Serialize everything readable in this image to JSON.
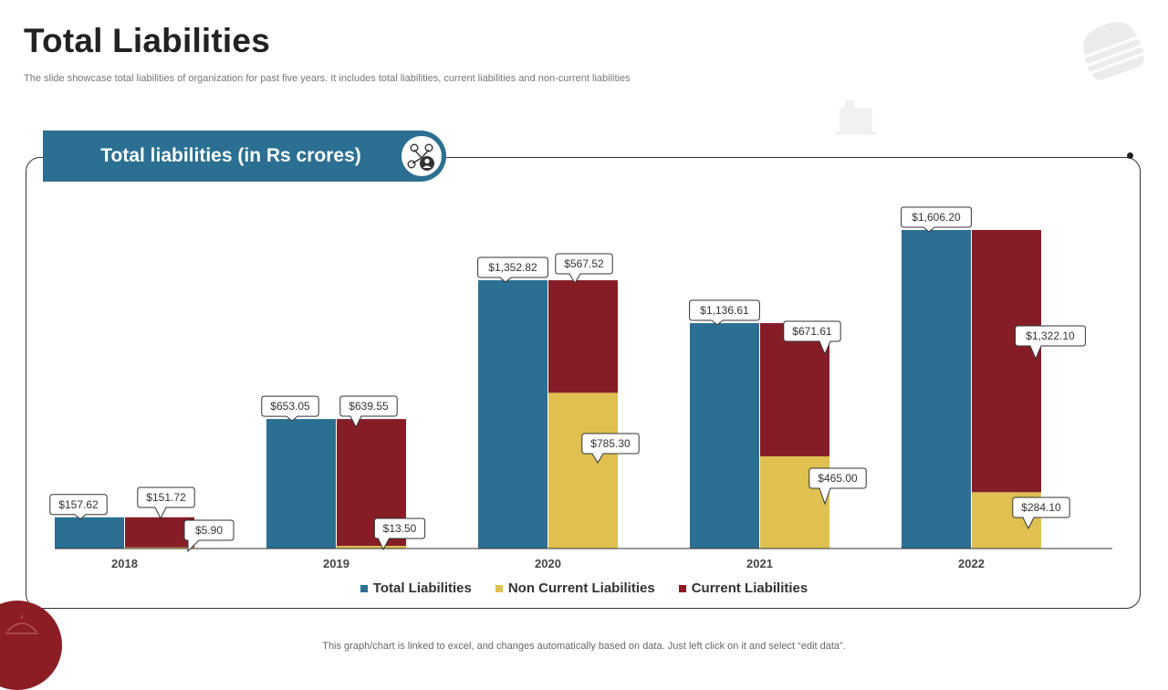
{
  "page": {
    "title": "Total Liabilities",
    "subtitle": "The slide showcase total liabilities of organization for past five years. It includes total liabilities, current liabilities and non-current liabilities",
    "header_label": "Total liabilities  (in Rs crores)",
    "footnote": "This graph/chart is linked to excel,  and changes automatically based on data. Just left click on it and select “edit data”."
  },
  "colors": {
    "total": "#2b6f92",
    "non_current": "#dfc050",
    "current": "#861d26",
    "header": "#2b6f92"
  },
  "chart_data": {
    "type": "bar",
    "title": "Total liabilities  (in Rs crores)",
    "categories": [
      "2018",
      "2019",
      "2020",
      "2021",
      "2022"
    ],
    "stacked_second_column": true,
    "series": [
      {
        "name": "Total Liabilities",
        "key": "total",
        "values": [
          157.62,
          653.05,
          1352.82,
          1136.61,
          1606.2
        ]
      },
      {
        "name": "Non Current Liabilities",
        "key": "non_current",
        "values": [
          5.9,
          13.5,
          785.3,
          465.0,
          284.1
        ]
      },
      {
        "name": "Current Liabilities",
        "key": "current",
        "values": [
          151.72,
          639.55,
          567.52,
          671.61,
          1322.1
        ]
      }
    ],
    "labels": {
      "total": [
        "$157.62",
        "$653.05",
        "$1,352.82",
        "$1,136.61",
        "$1,606.20"
      ],
      "non_current": [
        "$5.90",
        "$13.50",
        "$785.30",
        "$465.00",
        "$284.10"
      ],
      "current": [
        "$151.72",
        "$639.55",
        "$567.52",
        "$671.61",
        "$1,322.10"
      ]
    },
    "ylim": [
      0,
      1606.2
    ],
    "xlabel": "",
    "ylabel": "",
    "grid": false,
    "legend": "bottom"
  }
}
